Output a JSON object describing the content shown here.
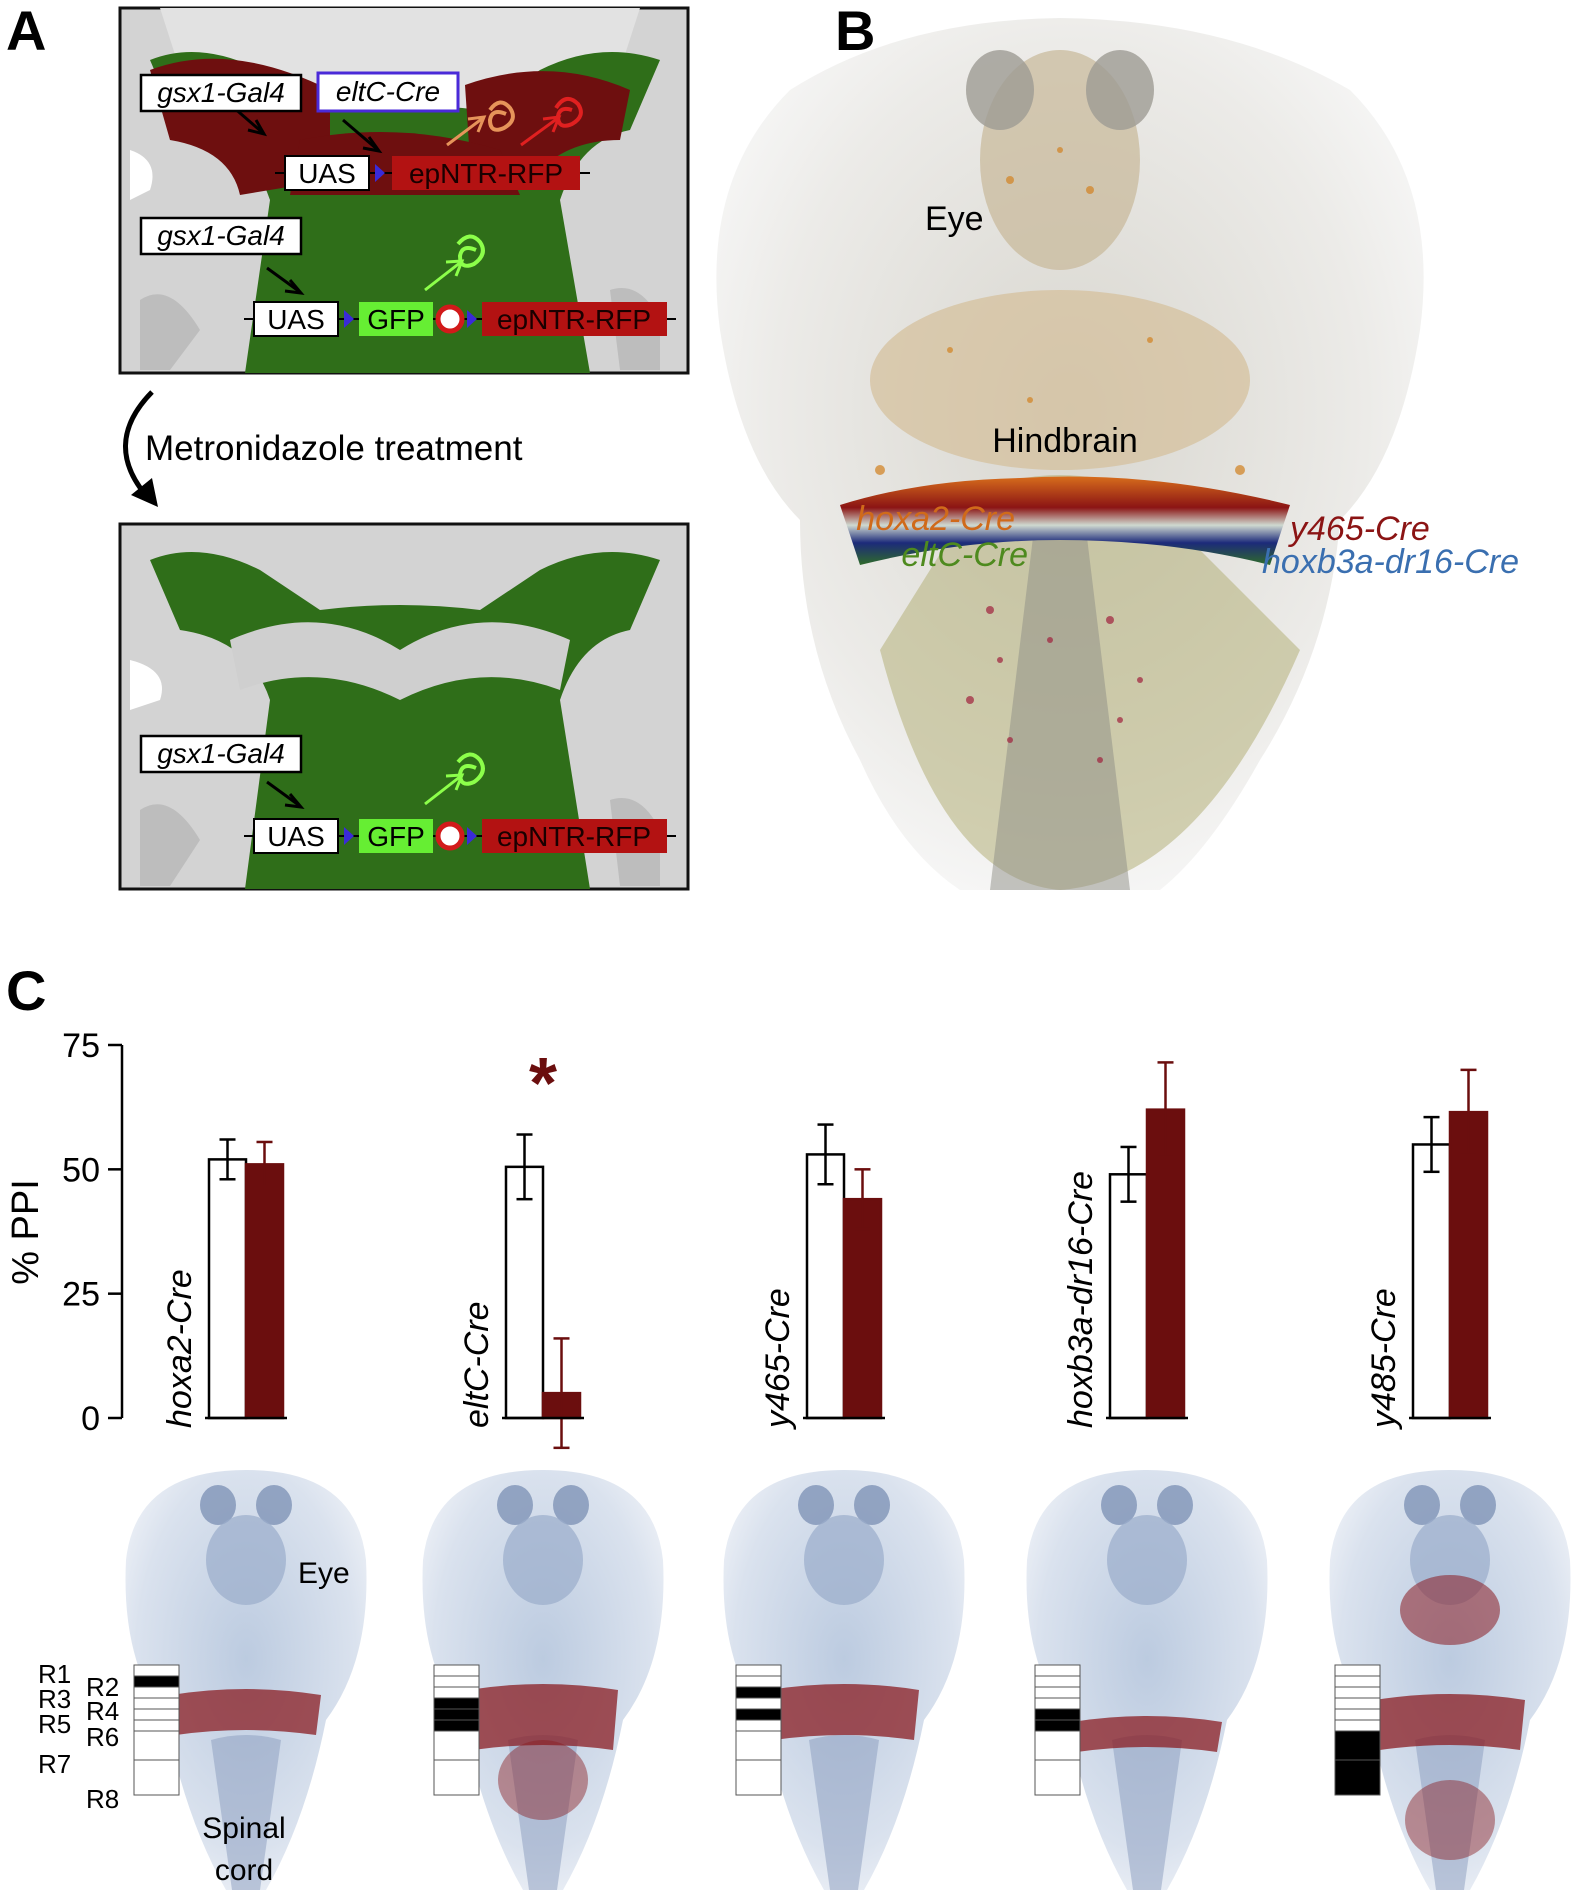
{
  "panels": {
    "a": {
      "letter": "A",
      "top": {
        "gsx1_label": "gsx1-Gal4",
        "eltc_label": "eltC-Cre",
        "uas_label": "UAS",
        "epntr_label": "epNTR-RFP",
        "gsx1_label_2": "gsx1-Gal4",
        "uas_label_2": "UAS",
        "gfp_label": "GFP",
        "epntr_label_2": "epNTR-RFP"
      },
      "treatment": "Metronidazole treatment",
      "bottom": {
        "gsx1_label": "gsx1-Gal4",
        "uas_label": "UAS",
        "gfp_label": "GFP",
        "epntr_label": "epNTR-RFP"
      }
    },
    "b": {
      "letter": "B",
      "eye": "Eye",
      "hindbrain": "Hindbrain",
      "lines": [
        {
          "label": "hoxa2-Cre",
          "color": "#d06a1a"
        },
        {
          "label": "eltC-Cre",
          "color": "#4e8a1e"
        },
        {
          "label": "y465-Cre",
          "color": "#8b1414"
        },
        {
          "label": "hoxb3a-dr16-Cre",
          "color": "#3a6fb0"
        }
      ]
    },
    "c": {
      "letter": "C",
      "eye": "Eye",
      "spinal": "Spinal",
      "cord": "cord",
      "rhombomeres": [
        "R1",
        "R2",
        "R3",
        "R4",
        "R5",
        "R6",
        "R7",
        "R8"
      ]
    }
  },
  "chart_data": {
    "type": "bar",
    "ylabel": "% PPI",
    "ylim": [
      0,
      75
    ],
    "yticks": [
      0,
      25,
      50,
      75
    ],
    "categories": [
      "hoxa2-Cre",
      "eltC-Cre",
      "y465-Cre",
      "hoxb3a-dr16-Cre",
      "y485-Cre"
    ],
    "series": [
      {
        "values": [
          52,
          50.5,
          53,
          49,
          55
        ],
        "errors": [
          4,
          6.5,
          6,
          5.5,
          5.5
        ],
        "color": "#ffffff"
      },
      {
        "values": [
          51,
          5,
          44,
          62,
          61.5
        ],
        "errors": [
          4.5,
          11,
          6,
          9.5,
          8.5
        ],
        "color": "#6b0e0e"
      }
    ],
    "annotations": [
      {
        "category": "eltC-Cre",
        "text": "*",
        "color": "#6b0e0e"
      }
    ],
    "ablated_rhombomeres": [
      [
        2
      ],
      [
        4,
        5,
        6
      ],
      [
        3,
        5
      ],
      [
        5,
        6
      ],
      [
        7,
        8
      ]
    ]
  }
}
